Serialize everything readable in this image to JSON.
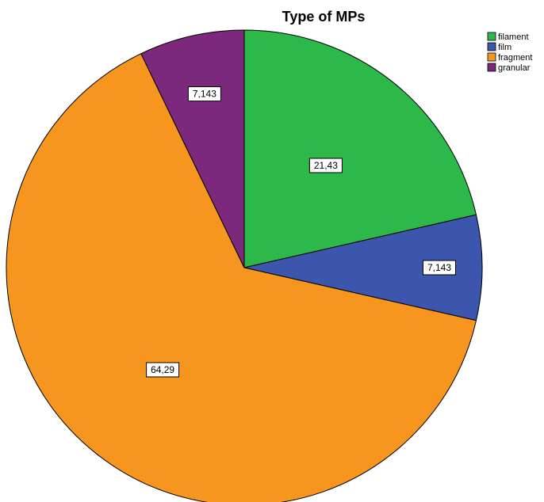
{
  "chart_data": {
    "type": "pie",
    "title": "Type of MPs",
    "categories": [
      "filament",
      "film",
      "fragment",
      "granular"
    ],
    "values": [
      21.43,
      7.143,
      64.29,
      7.143
    ],
    "labels": [
      "21,43",
      "7,143",
      "64,29",
      "7,143"
    ],
    "colors": [
      "#2db84a",
      "#3c56ad",
      "#f7961e",
      "#7b287d"
    ],
    "legend_position": "top-right"
  }
}
